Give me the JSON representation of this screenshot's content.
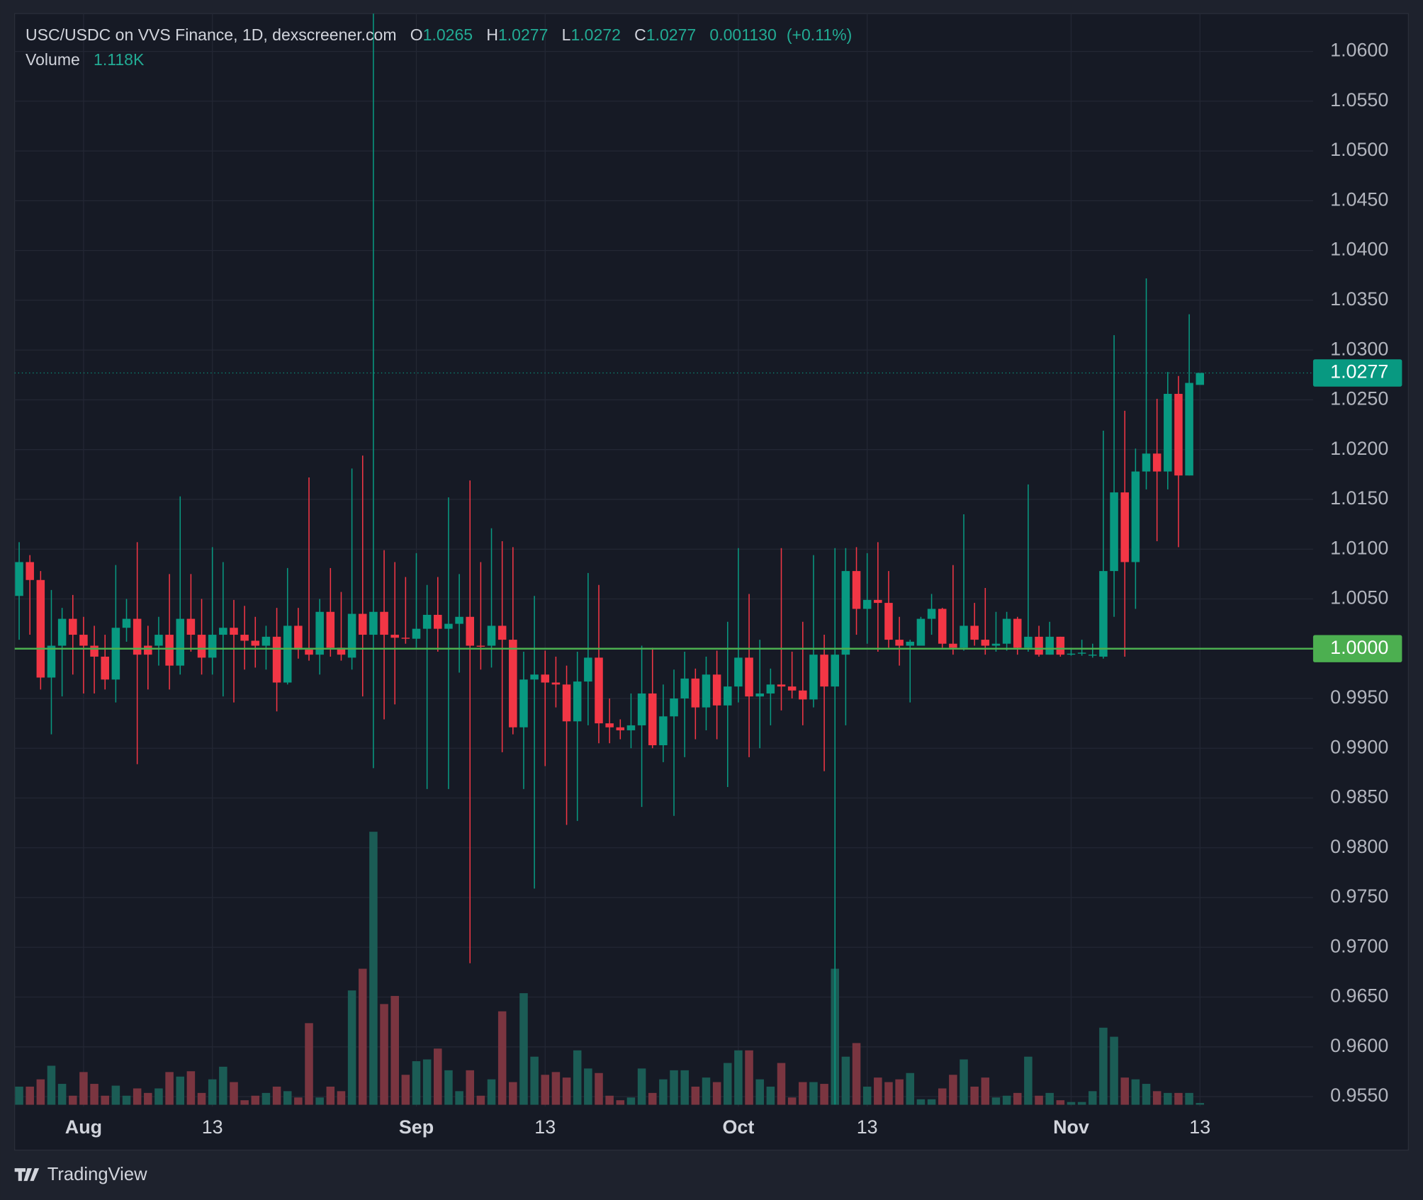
{
  "chart_data": {
    "type": "candlestick",
    "title": "USC/USDC on VVS Finance, 1D, dexscreener.com",
    "legend_labels": [
      "O",
      "H",
      "L",
      "C"
    ],
    "change": {
      "value": 0.00113,
      "label": "0.001130"
    },
    "change_pct": {
      "value": 0.11,
      "label": "(+0.11%)"
    },
    "volume_legend": {
      "name": "Volume",
      "label": "1.118K"
    },
    "x": [
      "07-26",
      "07-27",
      "07-28",
      "07-29",
      "07-30",
      "07-31",
      "08-01",
      "08-02",
      "08-03",
      "08-04",
      "08-05",
      "08-06",
      "08-07",
      "08-08",
      "08-09",
      "08-10",
      "08-11",
      "08-12",
      "08-13",
      "08-14",
      "08-15",
      "08-16",
      "08-17",
      "08-18",
      "08-19",
      "08-20",
      "08-21",
      "08-22",
      "08-23",
      "08-24",
      "08-25",
      "08-26",
      "08-27",
      "08-28",
      "08-29",
      "08-30",
      "08-31",
      "09-01",
      "09-02",
      "09-03",
      "09-04",
      "09-05",
      "09-06",
      "09-07",
      "09-08",
      "09-09",
      "09-10",
      "09-11",
      "09-12",
      "09-13",
      "09-14",
      "09-15",
      "09-16",
      "09-17",
      "09-18",
      "09-19",
      "09-20",
      "09-21",
      "09-22",
      "09-23",
      "09-24",
      "09-25",
      "09-26",
      "09-27",
      "09-28",
      "09-29",
      "09-30",
      "10-01",
      "10-02",
      "10-03",
      "10-04",
      "10-05",
      "10-06",
      "10-07",
      "10-08",
      "10-09",
      "10-10",
      "10-11",
      "10-12",
      "10-13",
      "10-14",
      "10-15",
      "10-16",
      "10-17",
      "10-18",
      "10-19",
      "10-20",
      "10-21",
      "10-22",
      "10-23",
      "10-24",
      "10-25",
      "10-26",
      "10-27",
      "10-28",
      "10-29",
      "10-30",
      "10-31",
      "11-01",
      "11-02",
      "11-03",
      "11-04",
      "11-05",
      "11-06",
      "11-07",
      "11-08",
      "11-09",
      "11-10",
      "11-11",
      "11-12",
      "11-13"
    ],
    "open": [
      1.0053,
      1.0087,
      1.0069,
      0.9971,
      1.0003,
      1.003,
      1.0014,
      1.0003,
      0.9992,
      0.9969,
      1.0021,
      1.003,
      1.0003,
      1.0003,
      1.0014,
      0.9983,
      1.003,
      1.0014,
      0.9991,
      1.0014,
      1.0021,
      1.0014,
      1.0008,
      1.0003,
      1.0012,
      0.9966,
      1.0023,
      0.9999,
      0.9994,
      1.0037,
      1.0001,
      0.9991,
      1.0035,
      1.0014,
      1.0037,
      1.0014,
      1.0011,
      1.001,
      1.002,
      1.0034,
      1.002,
      1.0025,
      1.0032,
      1.0003,
      1.0003,
      1.0023,
      1.0009,
      0.9921,
      0.9969,
      0.9974,
      0.9966,
      0.9964,
      0.9927,
      0.9967,
      0.9991,
      0.9925,
      0.9921,
      0.9918,
      0.9923,
      0.9955,
      0.9903,
      0.9932,
      0.995,
      0.997,
      0.9941,
      0.9974,
      0.9943,
      0.9962,
      0.9991,
      0.9952,
      0.9955,
      0.9964,
      0.9962,
      0.9958,
      0.9949,
      0.9994,
      0.9962,
      0.9994,
      1.0078,
      1.004,
      1.0049,
      1.0046,
      1.0009,
      1.0003,
      1.0003,
      1.003,
      1.004,
      1.0005,
      1.0001,
      1.0023,
      1.0009,
      1.0003,
      1.0005,
      1.003,
      1.0001,
      1.0012,
      0.9994,
      1.0012,
      0.9994,
      0.9995,
      0.9993,
      0.9992,
      1.0078,
      1.0157,
      1.0087,
      1.0178,
      1.0196,
      1.0178,
      1.0256,
      1.0174,
      1.0265
    ],
    "high": [
      1.0107,
      1.0094,
      1.0078,
      1.0059,
      1.0041,
      1.0054,
      1.0032,
      1.0023,
      1.0014,
      1.0084,
      1.005,
      1.0107,
      1.0023,
      1.0032,
      1.0075,
      1.0153,
      1.0075,
      1.005,
      1.0102,
      1.0087,
      1.0049,
      1.0043,
      1.0032,
      1.0023,
      1.0041,
      1.0081,
      1.0041,
      1.0172,
      1.005,
      1.0081,
      1.0057,
      1.0181,
      1.0194,
      1.064,
      1.0099,
      1.0087,
      1.0072,
      1.0096,
      1.0064,
      1.0072,
      1.0152,
      1.0075,
      1.0169,
      1.0087,
      1.0121,
      1.0108,
      1.0102,
      0.9997,
      1.0053,
      0.9998,
      0.9992,
      0.9983,
      0.9997,
      1.0076,
      1.0064,
      0.995,
      0.9929,
      0.9955,
      1.0003,
      1.0001,
      0.9964,
      0.9979,
      0.9997,
      0.998,
      0.9992,
      0.9998,
      1.0027,
      1.0101,
      1.0055,
      1.0009,
      0.998,
      1.0101,
      0.9997,
      1.0027,
      1.0094,
      1.0014,
      1.0101,
      1.0101,
      1.0102,
      1.0096,
      1.0107,
      1.0078,
      1.0032,
      1.0009,
      1.0032,
      1.0055,
      1.0041,
      1.0084,
      1.0135,
      1.0046,
      1.0061,
      1.0037,
      1.0037,
      1.0032,
      1.0165,
      1.0023,
      1.0027,
      1.0012,
      1.0001,
      1.0009,
      1.0005,
      1.0219,
      1.0315,
      1.0239,
      1.0201,
      1.0372,
      1.0251,
      1.0278,
      1.0274,
      1.0336,
      1.0277
    ],
    "low": [
      1.0009,
      1.0014,
      0.9959,
      0.9914,
      0.9952,
      0.9974,
      0.9955,
      0.9955,
      0.9959,
      0.9946,
      1.0007,
      0.9884,
      0.9959,
      0.9983,
      0.9959,
      0.9974,
      0.9997,
      0.9974,
      0.9974,
      0.9952,
      0.9946,
      0.9979,
      0.9981,
      0.9979,
      0.9937,
      0.9964,
      0.999,
      0.9988,
      0.9974,
      0.9992,
      0.9988,
      0.9979,
      0.9952,
      0.988,
      0.9929,
      0.9944,
      1.0005,
      1.0001,
      0.9859,
      0.9997,
      0.9859,
      0.9976,
      0.9684,
      0.9979,
      0.9981,
      0.9896,
      0.9914,
      0.9859,
      0.9759,
      0.9882,
      0.9941,
      0.9823,
      0.9827,
      0.9923,
      0.9905,
      0.9905,
      0.9909,
      0.99,
      0.9841,
      0.99,
      0.9886,
      0.9832,
      0.9891,
      0.9909,
      0.9918,
      0.9909,
      0.9861,
      0.9946,
      0.9891,
      0.99,
      0.9923,
      0.9938,
      0.995,
      0.9923,
      0.9941,
      0.9877,
      0.9542,
      0.9923,
      1.0014,
      1.0005,
      0.9997,
      1.0001,
      0.9983,
      0.9946,
      1.0003,
      1.0014,
      1.0001,
      0.9994,
      0.9998,
      1.0003,
      0.9994,
      0.9997,
      0.9998,
      0.9994,
      0.9997,
      0.9992,
      0.9994,
      0.9992,
      0.9993,
      0.9993,
      0.9991,
      0.999,
      1.0032,
      0.9992,
      1.004,
      1.016,
      1.0108,
      1.016,
      1.0102,
      1.0174,
      1.0272
    ],
    "close": [
      1.0087,
      1.0069,
      0.9971,
      1.0003,
      1.003,
      1.0014,
      1.0003,
      0.9992,
      0.9969,
      1.0021,
      1.003,
      0.9994,
      0.9994,
      1.0014,
      0.9983,
      1.003,
      1.0014,
      0.9991,
      1.0014,
      1.0021,
      1.0014,
      1.0008,
      1.0003,
      1.0012,
      0.9966,
      1.0023,
      0.9999,
      0.9994,
      1.0037,
      1.0001,
      0.9994,
      1.0035,
      1.0014,
      1.0037,
      1.0014,
      1.0011,
      1.001,
      1.002,
      1.0034,
      1.002,
      1.0025,
      1.0032,
      1.0003,
      1.0002,
      1.0023,
      1.0009,
      0.9921,
      0.9969,
      0.9974,
      0.9966,
      0.9964,
      0.9927,
      0.9967,
      0.9991,
      0.9925,
      0.9921,
      0.9918,
      0.9923,
      0.9955,
      0.9903,
      0.9932,
      0.995,
      0.997,
      0.9941,
      0.9974,
      0.9943,
      0.9962,
      0.9991,
      0.9952,
      0.9955,
      0.9964,
      0.9962,
      0.9958,
      0.9949,
      0.9994,
      0.9962,
      0.9994,
      1.0078,
      1.004,
      1.0049,
      1.0046,
      1.0009,
      1.0003,
      1.0007,
      1.003,
      1.004,
      1.0005,
      1.0001,
      1.0023,
      1.0009,
      1.0003,
      1.0005,
      1.003,
      1.0001,
      1.0012,
      0.9994,
      1.0012,
      0.9994,
      0.9995,
      0.9996,
      0.9994,
      1.0078,
      1.0157,
      1.0087,
      1.0178,
      1.0196,
      1.0178,
      1.0256,
      1.0174,
      1.0267,
      1.0277
    ],
    "volume": [
      11200,
      11200,
      15700,
      24100,
      12900,
      5600,
      20200,
      12900,
      5600,
      11800,
      5600,
      10100,
      7300,
      10100,
      20200,
      17400,
      20700,
      7300,
      15700,
      23500,
      14000,
      2800,
      5600,
      7300,
      11200,
      8400,
      4500,
      50400,
      4500,
      11200,
      8400,
      70600,
      84000,
      168600,
      62200,
      67200,
      18500,
      26900,
      28000,
      34700,
      21300,
      8400,
      21300,
      5600,
      15700,
      57700,
      14000,
      68900,
      29700,
      18500,
      20200,
      16800,
      33600,
      22400,
      19600,
      5600,
      2800,
      4500,
      22400,
      7300,
      15700,
      21300,
      21300,
      11200,
      16800,
      14000,
      25800,
      33600,
      33600,
      15700,
      11200,
      25800,
      4500,
      14000,
      14000,
      12900,
      84000,
      29700,
      38100,
      11200,
      16800,
      14000,
      15700,
      19600,
      3400,
      3400,
      10100,
      18500,
      28000,
      11200,
      16800,
      4500,
      5600,
      7300,
      29700,
      5600,
      7300,
      2800,
      1700,
      1700,
      8400,
      47600,
      42000,
      16800,
      15700,
      12900,
      8400,
      7300,
      7300,
      7300,
      1118
    ],
    "up_color": "#089981",
    "down_color": "#f23645",
    "volume_up_color": "#1b5c55",
    "volume_down_color": "#7a3540",
    "ylim": [
      0.954,
      1.0638
    ],
    "yticks": [
      {
        "value": 1.06,
        "label": "1.0600"
      },
      {
        "value": 1.055,
        "label": "1.0550"
      },
      {
        "value": 1.05,
        "label": "1.0500"
      },
      {
        "value": 1.045,
        "label": "1.0450"
      },
      {
        "value": 1.04,
        "label": "1.0400"
      },
      {
        "value": 1.035,
        "label": "1.0350"
      },
      {
        "value": 1.03,
        "label": "1.0300"
      },
      {
        "value": 1.025,
        "label": "1.0250"
      },
      {
        "value": 1.02,
        "label": "1.0200"
      },
      {
        "value": 1.015,
        "label": "1.0150"
      },
      {
        "value": 1.01,
        "label": "1.0100"
      },
      {
        "value": 1.005,
        "label": "1.0050"
      },
      {
        "value": 1.0,
        "label": "1.0000"
      },
      {
        "value": 0.995,
        "label": "0.9950"
      },
      {
        "value": 0.99,
        "label": "0.9900"
      },
      {
        "value": 0.985,
        "label": "0.9850"
      },
      {
        "value": 0.98,
        "label": "0.9800"
      },
      {
        "value": 0.975,
        "label": "0.9750"
      },
      {
        "value": 0.97,
        "label": "0.9700"
      },
      {
        "value": 0.965,
        "label": "0.9650"
      },
      {
        "value": 0.96,
        "label": "0.9600"
      },
      {
        "value": 0.955,
        "label": "0.9550"
      }
    ],
    "xticks": [
      {
        "value": "08-01",
        "label": "Aug"
      },
      {
        "value": "08-13",
        "label": "13"
      },
      {
        "value": "09-01",
        "label": "Sep"
      },
      {
        "value": "09-13",
        "label": "13"
      },
      {
        "value": "10-01",
        "label": "Oct"
      },
      {
        "value": "10-13",
        "label": "13"
      },
      {
        "value": "11-01",
        "label": "Nov"
      },
      {
        "value": "11-13",
        "label": "13"
      }
    ],
    "ref_line": {
      "value": 1.0,
      "label": "1.0000",
      "color": "#4caf50"
    },
    "grid": true
  },
  "footer": {
    "brand": "TradingView"
  }
}
